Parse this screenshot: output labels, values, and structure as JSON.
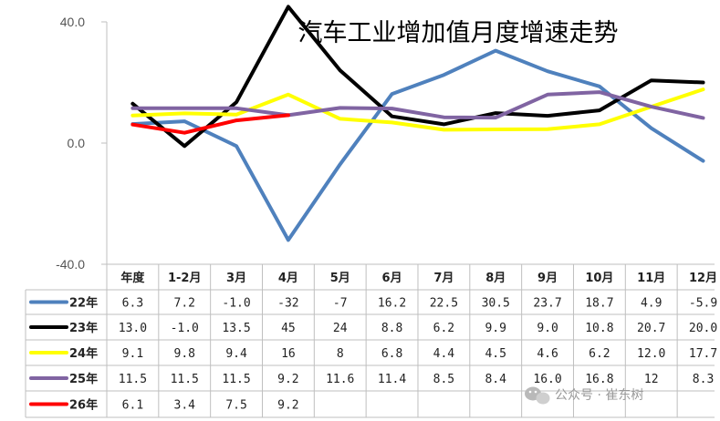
{
  "chart_data": {
    "type": "line",
    "title": "汽车工业增加值月度增速走势",
    "categories": [
      "年度",
      "1-2月",
      "3月",
      "4月",
      "5月",
      "6月",
      "7月",
      "8月",
      "9月",
      "10月",
      "11月",
      "12月"
    ],
    "ylim": [
      -40,
      40
    ],
    "yticks": [
      "40.0",
      "0.0",
      "-40.0"
    ],
    "grid": false,
    "series": [
      {
        "name": "22年",
        "color": "#4f81bd",
        "labels": [
          "6.3",
          "7.2",
          "-1.0",
          "-32",
          "-7",
          "16.2",
          "22.5",
          "30.5",
          "23.7",
          "18.7",
          "4.9",
          "-5.9"
        ],
        "values": [
          6.3,
          7.2,
          -1.0,
          -32,
          -7,
          16.2,
          22.5,
          30.5,
          23.7,
          18.7,
          4.9,
          -5.9
        ]
      },
      {
        "name": "23年",
        "color": "#000000",
        "labels": [
          "13.0",
          "-1.0",
          "13.5",
          "45",
          "24",
          "8.8",
          "6.2",
          "9.9",
          "9.0",
          "10.8",
          "20.7",
          "20.0"
        ],
        "values": [
          13.0,
          -1.0,
          13.5,
          45,
          24,
          8.8,
          6.2,
          9.9,
          9.0,
          10.8,
          20.7,
          20.0
        ]
      },
      {
        "name": "24年",
        "color": "#ffff00",
        "labels": [
          "9.1",
          "9.8",
          "9.4",
          "16",
          "8",
          "6.8",
          "4.4",
          "4.5",
          "4.6",
          "6.2",
          "12.0",
          "17.7"
        ],
        "values": [
          9.1,
          9.8,
          9.4,
          16,
          8,
          6.8,
          4.4,
          4.5,
          4.6,
          6.2,
          12.0,
          17.7
        ]
      },
      {
        "name": "25年",
        "color": "#8064a2",
        "labels": [
          "11.5",
          "11.5",
          "11.5",
          "9.2",
          "11.6",
          "11.4",
          "8.5",
          "8.4",
          "16.0",
          "16.8",
          "12",
          "8.3"
        ],
        "values": [
          11.5,
          11.5,
          11.5,
          9.2,
          11.6,
          11.4,
          8.5,
          8.4,
          16.0,
          16.8,
          12,
          8.3
        ]
      },
      {
        "name": "26年",
        "color": "#ff0000",
        "labels": [
          "6.1",
          "3.4",
          "7.5",
          "9.2",
          "",
          "",
          "",
          "",
          "",
          "",
          "",
          ""
        ],
        "values": [
          6.1,
          3.4,
          7.5,
          9.2,
          null,
          null,
          null,
          null,
          null,
          null,
          null,
          null
        ]
      }
    ]
  },
  "watermark": "公众号 · 崔东树"
}
